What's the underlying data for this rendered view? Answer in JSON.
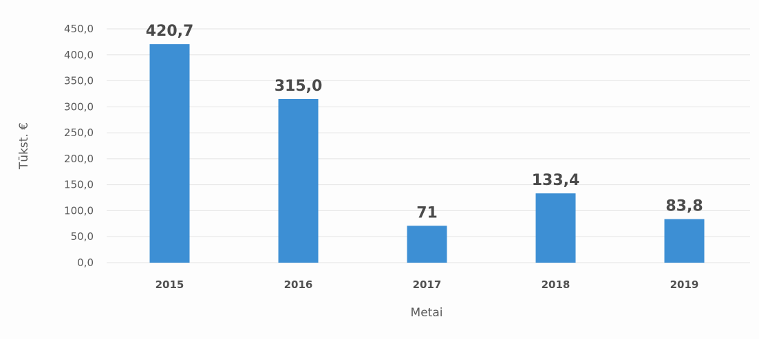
{
  "chart_data": {
    "type": "bar",
    "categories": [
      "2015",
      "2016",
      "2017",
      "2018",
      "2019"
    ],
    "values": [
      420.7,
      315.0,
      71,
      133.4,
      83.8
    ],
    "data_labels": [
      "420,7",
      "315,0",
      "71",
      "133,4",
      "83,8"
    ],
    "title": "",
    "xlabel": "Metai",
    "ylabel": "Tūkst. €",
    "ylim": [
      0,
      450
    ],
    "yticks": [
      0,
      50,
      100,
      150,
      200,
      250,
      300,
      350,
      400,
      450
    ],
    "ytick_labels": [
      "0,0",
      "50,0",
      "100,0",
      "150,0",
      "200,0",
      "250,0",
      "300,0",
      "350,0",
      "400,0",
      "450,0"
    ],
    "grid": true,
    "legend": "none",
    "bar_color": "#3d8fd4"
  }
}
